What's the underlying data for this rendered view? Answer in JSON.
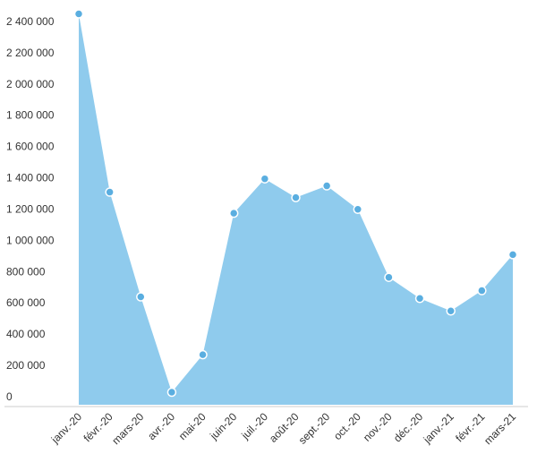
{
  "chart_data": {
    "type": "area",
    "categories": [
      "janv.-20",
      "févr.-20",
      "mars-20",
      "avr.-20",
      "mai-20",
      "juin-20",
      "juil.-20",
      "août-20",
      "sept.-20",
      "oct.-20",
      "nov.-20",
      "déc.-20",
      "janv.-21",
      "févr.-21",
      "mars-21"
    ],
    "values": [
      2500000,
      1360000,
      690000,
      80000,
      320000,
      1225000,
      1445000,
      1325000,
      1400000,
      1250000,
      815000,
      680000,
      600000,
      730000,
      960000
    ],
    "color": "#8fcbed",
    "marker_color": "#5aaee0",
    "ylim": [
      0,
      2500000
    ],
    "yticks": [
      0,
      {
        "value": 200000,
        "label": "200 000"
      },
      {
        "value": 400000,
        "label": "400 000"
      },
      {
        "value": 600000,
        "label": "600 000"
      },
      {
        "value": 800000,
        "label": "800 000"
      },
      {
        "value": 1000000,
        "label": "1 000 000"
      },
      {
        "value": 1200000,
        "label": "1 200 000"
      },
      {
        "value": 1400000,
        "label": "1 400 000"
      },
      {
        "value": 1600000,
        "label": "1 600 000"
      },
      {
        "value": 1800000,
        "label": "1 800 000"
      },
      {
        "value": 2000000,
        "label": "2 000 000"
      },
      {
        "value": 2200000,
        "label": "2 200 000"
      },
      {
        "value": 2400000,
        "label": "2 400 000"
      }
    ],
    "grid": false
  }
}
